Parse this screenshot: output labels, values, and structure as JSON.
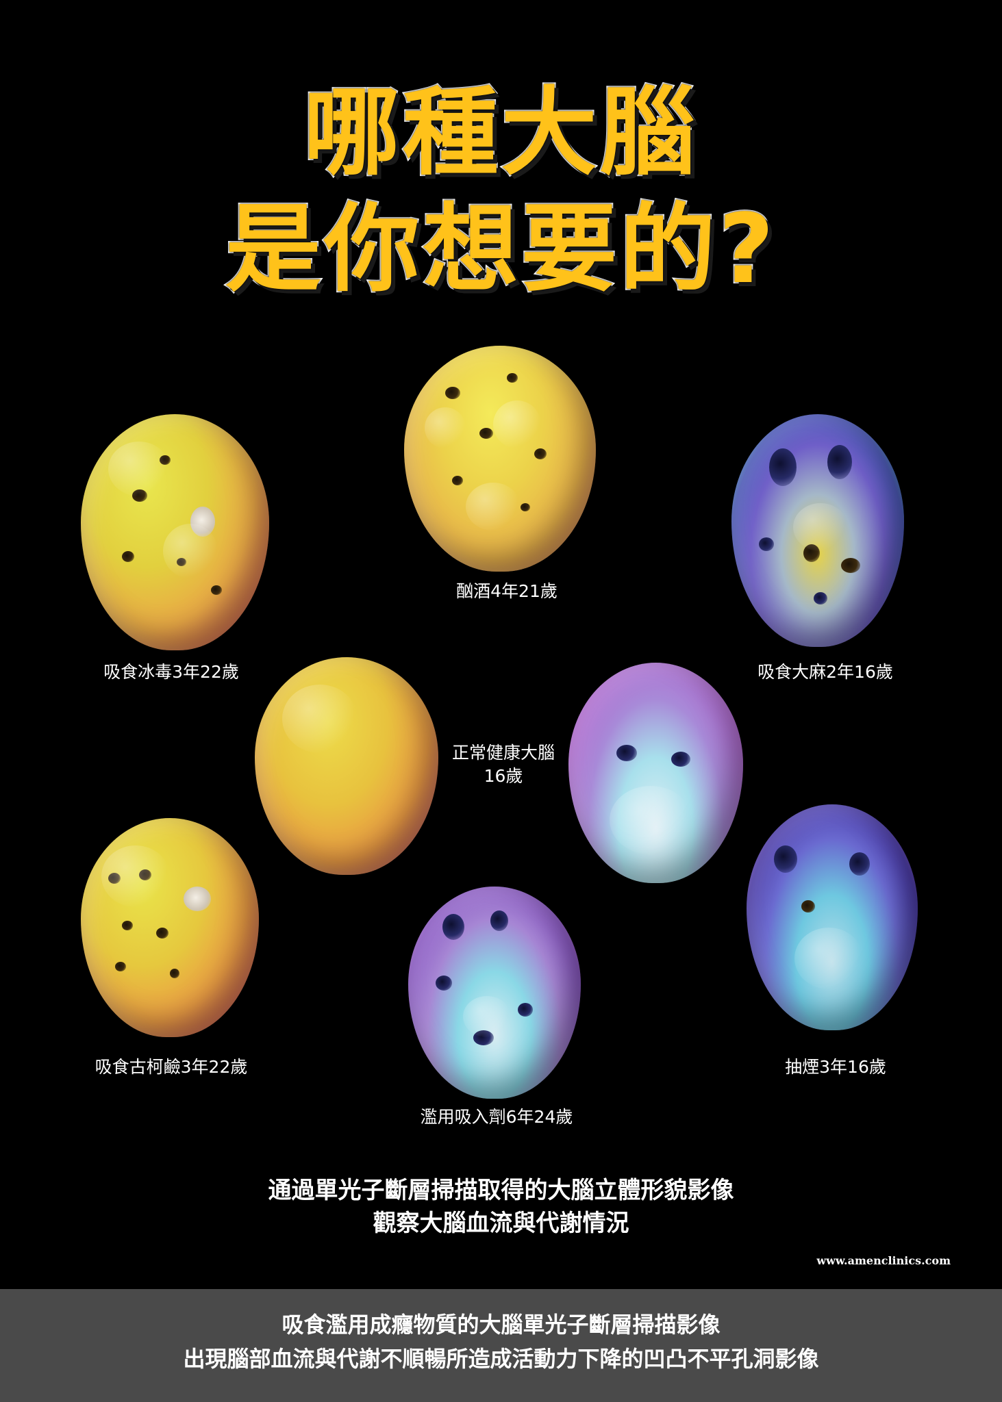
{
  "title": {
    "line1": "哪種大腦",
    "line2": "是你想要的?"
  },
  "scans": {
    "alcohol": "酗酒4年21歲",
    "meth": "吸食冰毒3年22歲",
    "marijuana": "吸食大麻2年16歲",
    "healthy_line1": "正常健康大腦",
    "healthy_line2": "16歲",
    "cocaine": "吸食古柯鹼3年22歲",
    "smoking": "抽煙3年16歲",
    "inhalant": "濫用吸入劑6年24歲"
  },
  "caption": {
    "line1": "通過單光子斷層掃描取得的大腦立體形貌影像",
    "line2": "觀察大腦血流與代謝情況"
  },
  "url": "www.amenclinics.com",
  "footer": {
    "line1": "吸食濫用成癮物質的大腦單光子斷層掃描影像",
    "line2": "出現腦部血流與代謝不順暢所造成活動力下降的凹凸不平孔洞影像"
  }
}
